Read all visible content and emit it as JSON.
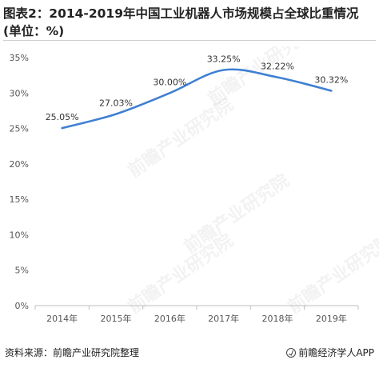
{
  "title": "图表2：2014-2019年中国工业机器人市场规模占全球比重情况(单位：%)",
  "source": "资料来源：前瞻产业研究院整理",
  "brand": "前瞻经济学人APP",
  "watermark": "前瞻产业研究院",
  "colors": {
    "line": "#3f80d3",
    "axis": "#bfbfbf",
    "text": "#555555"
  },
  "chart_data": {
    "type": "line",
    "categories": [
      "2014年",
      "2015年",
      "2016年",
      "2017年",
      "2018年",
      "2019年"
    ],
    "series": [
      {
        "values": [
          25.05,
          27.03,
          30.0,
          33.25,
          32.22,
          30.32
        ],
        "labels": [
          "25.05%",
          "27.03%",
          "30.00%",
          "33.25%",
          "32.22%",
          "30.32%"
        ]
      }
    ],
    "yticks": [
      "0%",
      "5%",
      "10%",
      "15%",
      "20%",
      "25%",
      "30%",
      "35%"
    ],
    "ylim": [
      0,
      35
    ],
    "grid": false,
    "smooth": true
  }
}
